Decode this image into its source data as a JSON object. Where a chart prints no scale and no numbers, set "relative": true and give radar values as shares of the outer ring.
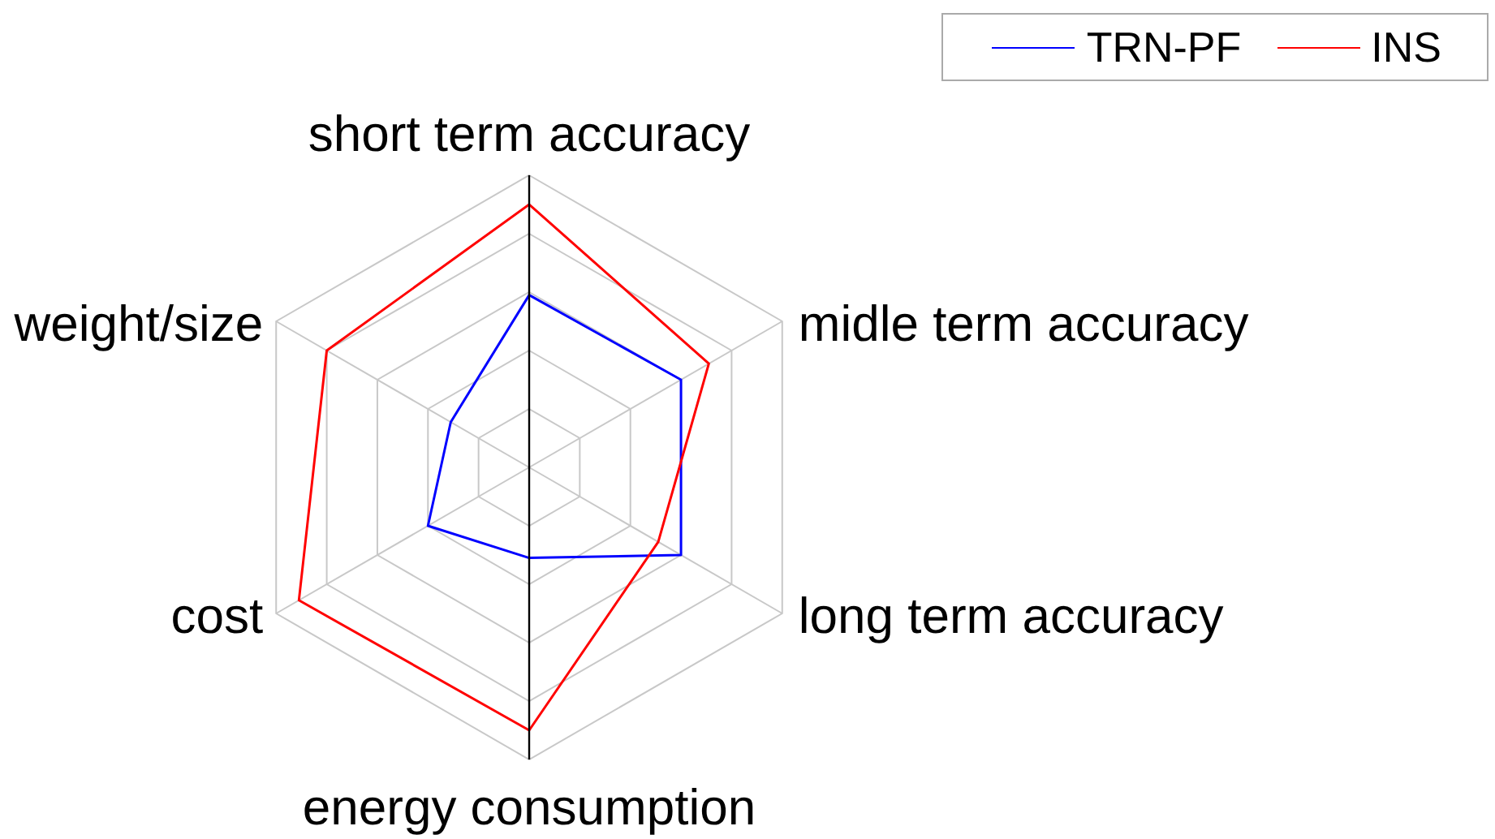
{
  "chart_data": {
    "type": "radar",
    "categories": [
      "short term accuracy",
      "midle term accuracy",
      "long term accuracy",
      "energy consumption",
      "cost",
      "weight/size"
    ],
    "relative": true,
    "series": [
      {
        "name": "TRN-PF",
        "color": "#0000ff",
        "values": [
          0.59,
          0.6,
          0.6,
          0.31,
          0.4,
          0.31
        ]
      },
      {
        "name": "INS",
        "color": "#ff0000",
        "values": [
          0.9,
          0.71,
          0.51,
          0.9,
          0.91,
          0.8
        ]
      }
    ],
    "legend": "top right",
    "grid": true
  }
}
